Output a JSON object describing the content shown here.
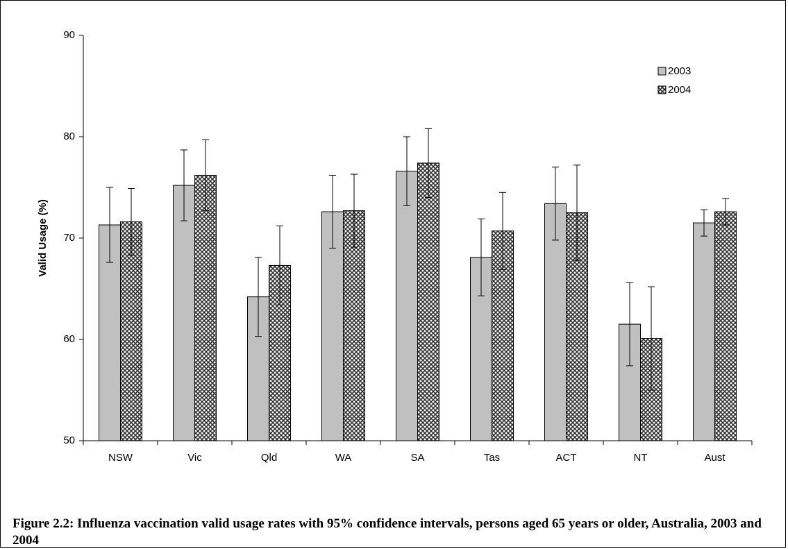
{
  "chart_data": {
    "type": "bar",
    "caption": "Figure 2.2: Influenza vaccination valid usage rates with 95% confidence intervals, persons aged 65 years or older, Australia, 2003 and 2004",
    "y_label": "Valid Usage (%)",
    "categories": [
      "NSW",
      "Vic",
      "Qld",
      "WA",
      "SA",
      "Tas",
      "ACT",
      "NT",
      "Aust"
    ],
    "series": [
      {
        "name": "2003",
        "color": "#c0c0c0",
        "pattern": "solid",
        "values": [
          71.3,
          75.2,
          64.2,
          72.6,
          76.6,
          68.1,
          73.4,
          61.5,
          71.5
        ],
        "errors": [
          3.7,
          3.5,
          3.9,
          3.6,
          3.4,
          3.8,
          3.6,
          4.1,
          1.3
        ]
      },
      {
        "name": "2004",
        "color": "#333333",
        "pattern": "crosshatch",
        "values": [
          71.6,
          76.2,
          67.3,
          72.7,
          77.4,
          70.7,
          72.5,
          60.1,
          72.6
        ],
        "errors": [
          3.3,
          3.5,
          3.9,
          3.6,
          3.4,
          3.8,
          4.7,
          5.1,
          1.3
        ]
      }
    ],
    "ylim": [
      50,
      90
    ],
    "yticks": [
      50,
      60,
      70,
      80,
      90
    ],
    "grid": false,
    "legend": "top-right"
  }
}
